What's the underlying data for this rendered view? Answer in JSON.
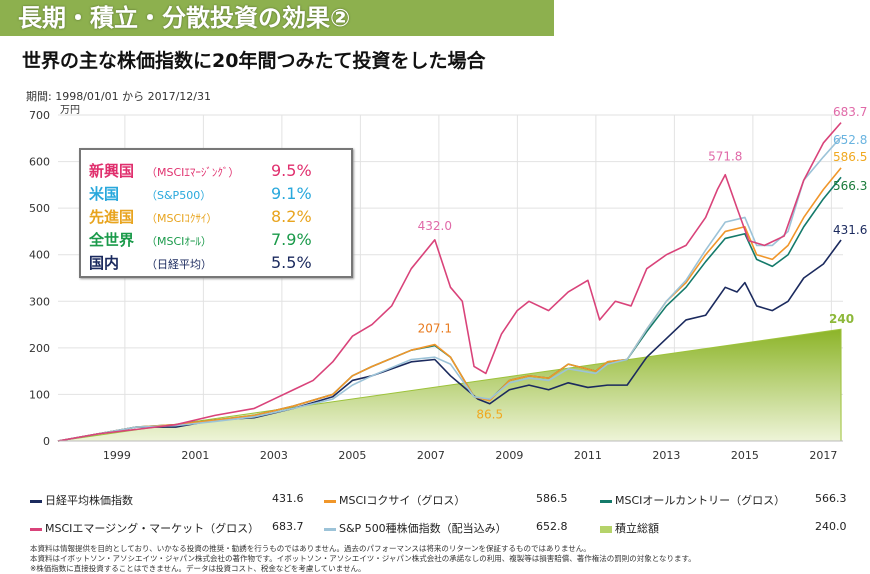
{
  "header": {
    "title": "長期・積立・分散投資の効果②",
    "subtitle": "世界の主な株価指数に20年間つみたて投資をした場合",
    "period": "期間: 1998/01/01 から 2017/12/31"
  },
  "returns_box": [
    {
      "name": "新興国",
      "index": "（MSCIｴﾏｰｼﾞﾝｸﾞ）",
      "rate": "9.5%",
      "color": "#e0306e"
    },
    {
      "name": "米国",
      "index": "（S&P500）",
      "rate": "9.1%",
      "color": "#29a8dc"
    },
    {
      "name": "先進国",
      "index": "（MSCIｺｸｻｲ）",
      "rate": "8.2%",
      "color": "#e8a41e"
    },
    {
      "name": "全世界",
      "index": "（MSCIｵｰﾙ）",
      "rate": "7.9%",
      "color": "#1a9a4a"
    },
    {
      "name": "国内",
      "index": "（日経平均）",
      "rate": "5.5%",
      "color": "#1b2a5e"
    }
  ],
  "legend": [
    {
      "label": "日経平均株価指数",
      "value": "431.6",
      "color": "#1b2a5e"
    },
    {
      "label": "MSCIコクサイ（グロス）",
      "value": "586.5",
      "color": "#f0962a"
    },
    {
      "label": "MSCIオールカントリー（グロス）",
      "value": "566.3",
      "color": "#147a6a"
    },
    {
      "label": "MSCIエマージング・マーケット（グロス）",
      "value": "683.7",
      "color": "#d9437a"
    },
    {
      "label": "S&P 500種株価指数（配当込み）",
      "value": "652.8",
      "color": "#9cc3d8"
    },
    {
      "label": "積立総額",
      "value": "240.0",
      "color": "#b5d36a"
    }
  ],
  "notes": [
    "本資料は情報提供を目的としており、いかなる投資の推奨・勧誘を行うものではありません。過去のパフォーマンスは将来のリターンを保証するものではありません。",
    "本資料はイボットソン・アソシエイツ・ジャパン株式会社の著作物です。イボットソン・アソシエイツ・ジャパン株式会社の承諾なしの利用、複製等は損害賠償、著作権法の罰則の対象となります。",
    "※株価指数に直接投資することはできません。データは投資コスト、税金などを考慮していません。"
  ],
  "chart_data": {
    "type": "line",
    "ylabel": "万円",
    "ylim": [
      0,
      700
    ],
    "xlim": [
      1998,
      2018
    ],
    "yticks": [
      "0",
      "100",
      "200",
      "300",
      "400",
      "500",
      "600",
      "700"
    ],
    "xticks": [
      "1999",
      "2001",
      "2003",
      "2005",
      "2007",
      "2009",
      "2011",
      "2013",
      "2015",
      "2017"
    ],
    "grid": true,
    "annotations": [
      {
        "text": "432.0",
        "x": 2007.6,
        "y": 432,
        "color": "#e06aa8"
      },
      {
        "text": "207.1",
        "x": 2007.6,
        "y": 207.1,
        "color": "#e87a1e"
      },
      {
        "text": "86.5",
        "x": 2009.0,
        "y": 86.5,
        "color": "#f0a820"
      },
      {
        "text": "571.8",
        "x": 2015.0,
        "y": 571.8,
        "color": "#e06aa8"
      },
      {
        "text": "683.7",
        "x": 2017.95,
        "y": 683.7,
        "color": "#e06aa8"
      },
      {
        "text": "652.8",
        "x": 2017.95,
        "y": 652.8,
        "color": "#6ab4e0"
      },
      {
        "text": "586.5",
        "x": 2017.95,
        "y": 586.5,
        "color": "#f0a820"
      },
      {
        "text": "566.3",
        "x": 2017.95,
        "y": 566.3,
        "color": "#1a7a3a"
      },
      {
        "text": "431.6",
        "x": 2017.95,
        "y": 431.6,
        "color": "#1b2a5e"
      },
      {
        "text": "240",
        "x": 2017.95,
        "y": 240,
        "color": "#8db83a"
      }
    ],
    "series": [
      {
        "name": "積立総額",
        "color": "#9dc23a",
        "type": "area",
        "x": [
          1998,
          2017.95
        ],
        "y": [
          0,
          240
        ]
      },
      {
        "name": "日経平均株価指数",
        "color": "#1b2a5e",
        "x": [
          1998,
          1999,
          2000,
          2001,
          2002,
          2003,
          2004,
          2005,
          2005.5,
          2006,
          2007,
          2007.6,
          2008,
          2008.7,
          2009,
          2009.5,
          2010,
          2010.5,
          2011,
          2011.5,
          2012,
          2012.5,
          2013,
          2013.5,
          2014,
          2014.5,
          2015,
          2015.3,
          2015.5,
          2015.8,
          2016.2,
          2016.6,
          2017,
          2017.5,
          2017.95
        ],
        "y": [
          0,
          15,
          30,
          30,
          45,
          50,
          70,
          95,
          130,
          140,
          170,
          175,
          140,
          90,
          80,
          110,
          120,
          110,
          125,
          115,
          120,
          120,
          180,
          220,
          260,
          270,
          330,
          320,
          340,
          290,
          280,
          300,
          350,
          380,
          431.6
        ]
      },
      {
        "name": "MSCIオールカントリー（グロス）",
        "color": "#147a6a",
        "x": [
          1998,
          1999,
          2000,
          2001,
          2002,
          2003,
          2004,
          2005,
          2005.5,
          2006,
          2007,
          2007.6,
          2008,
          2008.6,
          2009,
          2009.5,
          2010,
          2010.5,
          2011,
          2011.7,
          2012,
          2012.5,
          2013,
          2013.5,
          2014,
          2014.5,
          2015,
          2015.5,
          2015.8,
          2016.2,
          2016.6,
          2017,
          2017.5,
          2017.95
        ],
        "y": [
          0,
          15,
          30,
          35,
          45,
          55,
          75,
          100,
          140,
          160,
          195,
          205,
          180,
          95,
          88,
          130,
          140,
          135,
          165,
          150,
          170,
          175,
          235,
          290,
          330,
          385,
          435,
          445,
          390,
          375,
          400,
          460,
          520,
          566.3
        ]
      },
      {
        "name": "MSCIコクサイ（グロス）",
        "color": "#f0962a",
        "x": [
          1998,
          1999,
          2000,
          2001,
          2002,
          2003,
          2004,
          2005,
          2005.5,
          2006,
          2007,
          2007.6,
          2008,
          2008.6,
          2009,
          2009.5,
          2010,
          2010.5,
          2011,
          2011.7,
          2012,
          2012.5,
          2013,
          2013.5,
          2014,
          2014.5,
          2015,
          2015.5,
          2015.8,
          2016.2,
          2016.6,
          2017,
          2017.5,
          2017.95
        ],
        "y": [
          0,
          15,
          30,
          35,
          45,
          55,
          75,
          100,
          140,
          160,
          195,
          207.1,
          180,
          95,
          86.5,
          130,
          140,
          135,
          165,
          150,
          170,
          175,
          240,
          300,
          340,
          400,
          450,
          460,
          400,
          390,
          420,
          480,
          540,
          586.5
        ]
      },
      {
        "name": "S&P 500種株価指数（配当込み）",
        "color": "#9cc3d8",
        "x": [
          1998,
          1999,
          2000,
          2001,
          2002,
          2003,
          2004,
          2005,
          2005.5,
          2006,
          2007,
          2007.6,
          2008,
          2008.6,
          2009,
          2009.5,
          2010,
          2010.5,
          2011,
          2011.7,
          2012,
          2012.5,
          2013,
          2013.5,
          2014,
          2014.5,
          2015,
          2015.5,
          2015.8,
          2016.2,
          2016.6,
          2017,
          2017.5,
          2017.95
        ],
        "y": [
          0,
          15,
          30,
          33,
          42,
          52,
          70,
          90,
          120,
          140,
          175,
          180,
          165,
          95,
          90,
          125,
          135,
          130,
          155,
          145,
          165,
          175,
          240,
          300,
          345,
          410,
          470,
          480,
          420,
          420,
          450,
          560,
          610,
          652.8
        ]
      },
      {
        "name": "MSCIエマージング・マーケット（グロス）",
        "color": "#d9437a",
        "x": [
          1998,
          1999,
          2000,
          2001,
          2002,
          2003,
          2003.5,
          2004,
          2004.5,
          2005,
          2005.5,
          2006,
          2006.5,
          2007,
          2007.6,
          2008,
          2008.3,
          2008.6,
          2008.9,
          2009.3,
          2009.7,
          2010,
          2010.5,
          2011,
          2011.5,
          2011.8,
          2012.2,
          2012.6,
          2013,
          2013.5,
          2014,
          2014.5,
          2014.8,
          2015,
          2015.3,
          2015.6,
          2016,
          2016.5,
          2017,
          2017.5,
          2017.95
        ],
        "y": [
          0,
          15,
          25,
          35,
          55,
          70,
          90,
          110,
          130,
          170,
          225,
          250,
          290,
          370,
          432,
          330,
          300,
          160,
          145,
          230,
          280,
          300,
          280,
          320,
          345,
          260,
          300,
          290,
          370,
          400,
          420,
          480,
          540,
          571.8,
          500,
          430,
          420,
          440,
          560,
          640,
          683.7
        ]
      }
    ]
  }
}
